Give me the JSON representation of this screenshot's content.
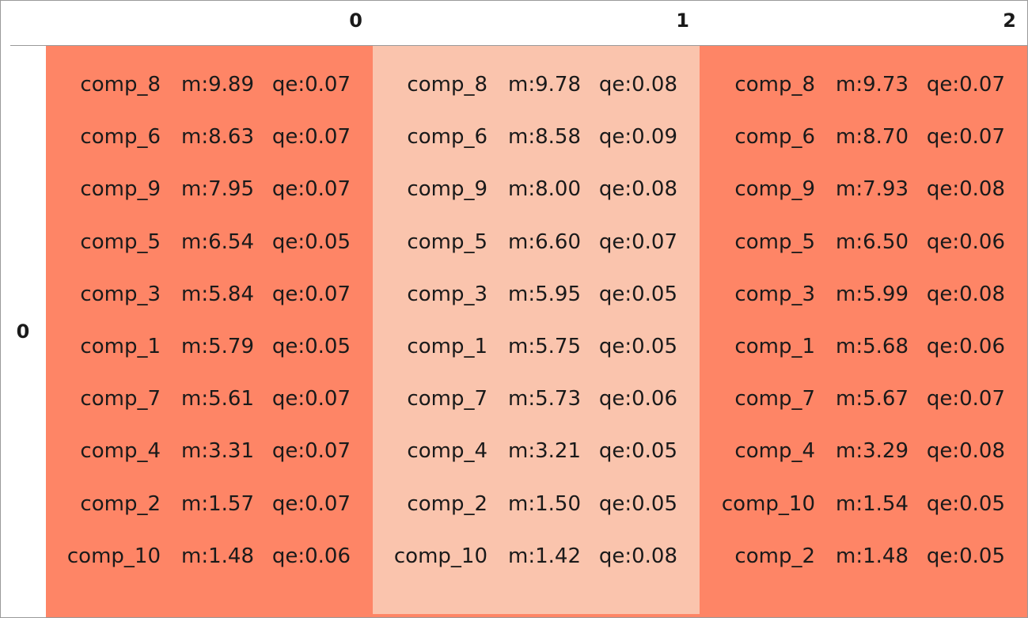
{
  "table": {
    "column_headers": [
      "0",
      "1",
      "2"
    ],
    "row_headers": [
      "0"
    ],
    "colors": {
      "dark_cell": "#fe8566",
      "light_cell": "#fac4ad",
      "border": "#9a9a9a"
    },
    "cells": [
      {
        "column": "0",
        "shade": "dark",
        "items": [
          {
            "name": "comp_8",
            "m": "m:9.89",
            "qe": "qe:0.07"
          },
          {
            "name": "comp_6",
            "m": "m:8.63",
            "qe": "qe:0.07"
          },
          {
            "name": "comp_9",
            "m": "m:7.95",
            "qe": "qe:0.07"
          },
          {
            "name": "comp_5",
            "m": "m:6.54",
            "qe": "qe:0.05"
          },
          {
            "name": "comp_3",
            "m": "m:5.84",
            "qe": "qe:0.07"
          },
          {
            "name": "comp_1",
            "m": "m:5.79",
            "qe": "qe:0.05"
          },
          {
            "name": "comp_7",
            "m": "m:5.61",
            "qe": "qe:0.07"
          },
          {
            "name": "comp_4",
            "m": "m:3.31",
            "qe": "qe:0.07"
          },
          {
            "name": "comp_2",
            "m": "m:1.57",
            "qe": "qe:0.07"
          },
          {
            "name": "comp_10",
            "m": "m:1.48",
            "qe": "qe:0.06"
          }
        ]
      },
      {
        "column": "1",
        "shade": "light",
        "items": [
          {
            "name": "comp_8",
            "m": "m:9.78",
            "qe": "qe:0.08"
          },
          {
            "name": "comp_6",
            "m": "m:8.58",
            "qe": "qe:0.09"
          },
          {
            "name": "comp_9",
            "m": "m:8.00",
            "qe": "qe:0.08"
          },
          {
            "name": "comp_5",
            "m": "m:6.60",
            "qe": "qe:0.07"
          },
          {
            "name": "comp_3",
            "m": "m:5.95",
            "qe": "qe:0.05"
          },
          {
            "name": "comp_1",
            "m": "m:5.75",
            "qe": "qe:0.05"
          },
          {
            "name": "comp_7",
            "m": "m:5.73",
            "qe": "qe:0.06"
          },
          {
            "name": "comp_4",
            "m": "m:3.21",
            "qe": "qe:0.05"
          },
          {
            "name": "comp_2",
            "m": "m:1.50",
            "qe": "qe:0.05"
          },
          {
            "name": "comp_10",
            "m": "m:1.42",
            "qe": "qe:0.08"
          }
        ]
      },
      {
        "column": "2",
        "shade": "dark",
        "items": [
          {
            "name": "comp_8",
            "m": "m:9.73",
            "qe": "qe:0.07"
          },
          {
            "name": "comp_6",
            "m": "m:8.70",
            "qe": "qe:0.07"
          },
          {
            "name": "comp_9",
            "m": "m:7.93",
            "qe": "qe:0.08"
          },
          {
            "name": "comp_5",
            "m": "m:6.50",
            "qe": "qe:0.06"
          },
          {
            "name": "comp_3",
            "m": "m:5.99",
            "qe": "qe:0.08"
          },
          {
            "name": "comp_1",
            "m": "m:5.68",
            "qe": "qe:0.06"
          },
          {
            "name": "comp_7",
            "m": "m:5.67",
            "qe": "qe:0.07"
          },
          {
            "name": "comp_4",
            "m": "m:3.29",
            "qe": "qe:0.08"
          },
          {
            "name": "comp_10",
            "m": "m:1.54",
            "qe": "qe:0.05"
          },
          {
            "name": "comp_2",
            "m": "m:1.48",
            "qe": "qe:0.05"
          }
        ]
      }
    ]
  }
}
